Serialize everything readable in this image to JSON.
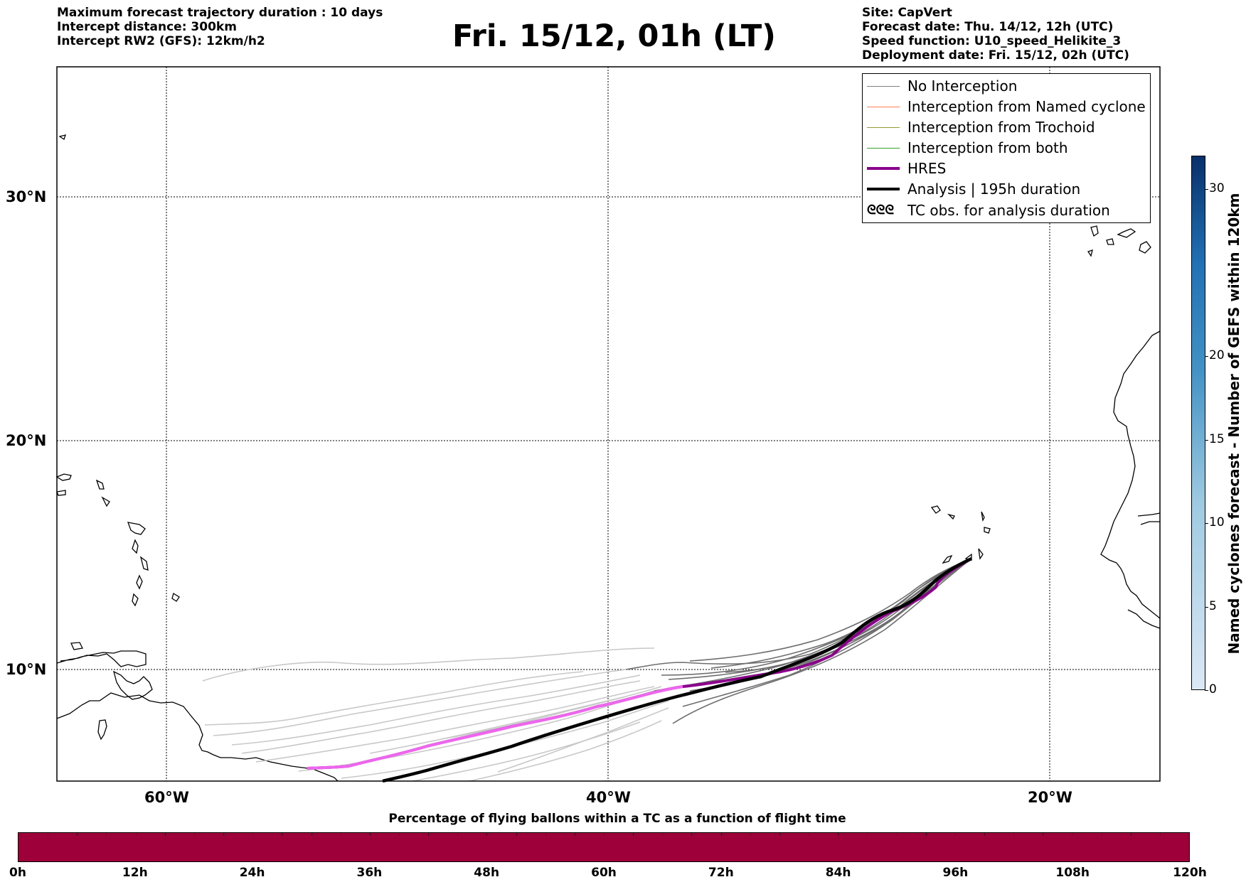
{
  "header_left": {
    "line1": "Maximum forecast trajectory duration : 10 days",
    "line2": "Intercept distance: 300km",
    "line3": "Intercept RW2 (GFS):  12km/h2"
  },
  "title": "Fri. 15/12, 01h (LT)",
  "header_right": {
    "line1": "Site: CapVert",
    "line2": "Forecast date: Thu. 14/12, 12h (UTC)",
    "line3": "Speed function: U10_speed_Helikite_3",
    "line4": "Deployment date: Fri. 15/12, 02h (UTC)"
  },
  "map": {
    "lon_range": [
      -65,
      15
    ],
    "lat_range": [
      5.5,
      35
    ],
    "lon_ticks": [
      {
        "lon": -60,
        "label": "60°W"
      },
      {
        "lon": -40,
        "label": "40°W"
      },
      {
        "lon": -20,
        "label": "20°W"
      }
    ],
    "lat_ticks": [
      {
        "lat": 30,
        "label": "30°N"
      },
      {
        "lat": 20,
        "label": "20°N"
      },
      {
        "lat": 10,
        "label": "10°N"
      }
    ],
    "grid": "dotted",
    "launch_site": "CapVert",
    "colors": {
      "no_interception": "#808080",
      "named_cyclone": "#ff7f50",
      "trochoid": "#999933",
      "both": "#33a02c",
      "hres": "#8b008b",
      "hres_early": "#ee66ee",
      "analysis": "#000000"
    }
  },
  "legend": {
    "items": [
      {
        "label": "No Interception",
        "color": "#808080",
        "width": 1.2,
        "symbol": "line"
      },
      {
        "label": "Interception from Named cyclone",
        "color": "#ff7f50",
        "width": 1.2,
        "symbol": "line"
      },
      {
        "label": "Interception from Trochoid",
        "color": "#999933",
        "width": 1.2,
        "symbol": "line"
      },
      {
        "label": "Interception from both",
        "color": "#33a02c",
        "width": 1.2,
        "symbol": "line"
      },
      {
        "label": "HRES",
        "color": "#8b008b",
        "width": 4,
        "symbol": "line"
      },
      {
        "label": "Analysis | 195h duration",
        "color": "#000000",
        "width": 4,
        "symbol": "line"
      },
      {
        "label": "TC obs. for analysis duration",
        "color": "#000000",
        "symbol": "tc-glyph",
        "glyph": "ᘓᘓᘓ"
      }
    ]
  },
  "colorbar_vertical": {
    "label": "Named cyclones forecast - Number of GEFS within 120km",
    "min": 0,
    "max": 32,
    "ticks": [
      0,
      5,
      10,
      15,
      20,
      30
    ],
    "color_low": "#dbe8f6",
    "color_high": "#08306b"
  },
  "colorbar_horizontal": {
    "title": "Percentage of flying ballons within a TC as a function of flight time",
    "fill_color": "#9e003a",
    "ticks": [
      "0h",
      "12h",
      "24h",
      "36h",
      "48h",
      "60h",
      "72h",
      "84h",
      "96h",
      "108h",
      "120h"
    ]
  }
}
